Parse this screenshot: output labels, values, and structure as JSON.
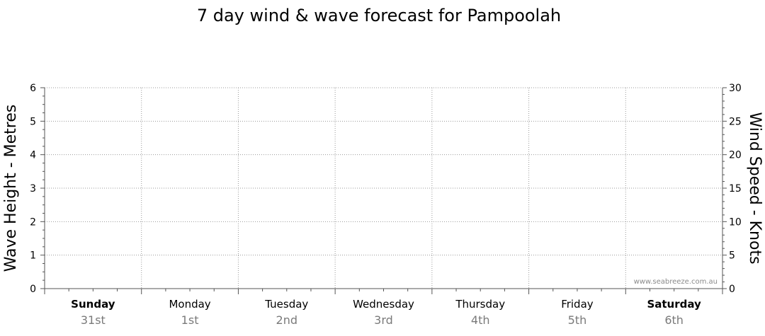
{
  "chart_data": {
    "type": "line",
    "title": "7 day wind & wave forecast for Pampoolah",
    "y_left": {
      "label": "Wave Height - Metres",
      "range": [
        0,
        6
      ],
      "ticks": [
        "0",
        "1",
        "2",
        "3",
        "4",
        "5",
        "6"
      ]
    },
    "y_right": {
      "label": "Wind Speed - Knots",
      "range": [
        0,
        30
      ],
      "ticks": [
        "0",
        "5",
        "10",
        "15",
        "20",
        "25",
        "30"
      ]
    },
    "days": [
      {
        "name": "Sunday",
        "date": "31st",
        "bold": true
      },
      {
        "name": "Monday",
        "date": "1st",
        "bold": false
      },
      {
        "name": "Tuesday",
        "date": "2nd",
        "bold": false
      },
      {
        "name": "Wednesday",
        "date": "3rd",
        "bold": false
      },
      {
        "name": "Thursday",
        "date": "4th",
        "bold": false
      },
      {
        "name": "Friday",
        "date": "5th",
        "bold": false
      },
      {
        "name": "Saturday",
        "date": "6th",
        "bold": true
      }
    ],
    "series": [],
    "grid": true,
    "watermark": "www.seabreeze.com.au"
  }
}
